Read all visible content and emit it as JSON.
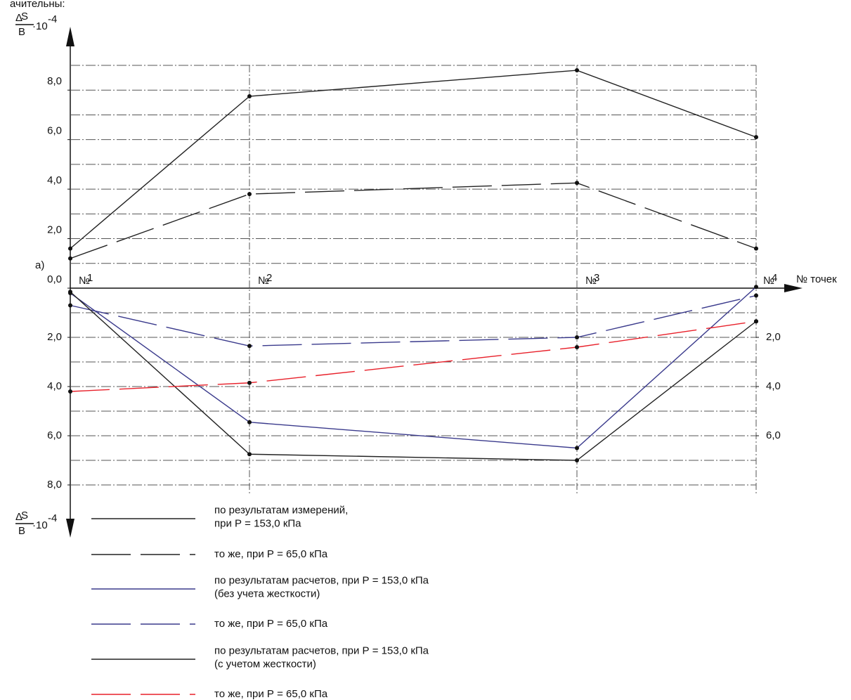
{
  "chart_data": {
    "type": "line",
    "caption_fragment": "ачительны:",
    "panel_label": "а)",
    "y_label": {
      "delta": "Δ",
      "numerator": "S",
      "denominator": "B",
      "factor": "·10",
      "exponent": "-4"
    },
    "x_label": "№ точек",
    "category_prefix": "№",
    "categories": [
      "1",
      "2",
      "3",
      "4"
    ],
    "ylim": [
      0,
      9
    ],
    "yticks": [
      {
        "value": 0,
        "label": "0,0"
      },
      {
        "value": 2,
        "label": "2,0"
      },
      {
        "value": 4,
        "label": "4,0"
      },
      {
        "value": 6,
        "label": "6,0"
      },
      {
        "value": 8,
        "label": "8,0"
      }
    ],
    "ygrid": [
      1,
      2,
      3,
      4,
      5,
      6,
      7,
      8,
      9
    ],
    "ylim_down": [
      0,
      8
    ],
    "yticks_down": [
      {
        "value": 2,
        "label": "2,0"
      },
      {
        "value": 4,
        "label": "4,0"
      },
      {
        "value": 6,
        "label": "6,0"
      },
      {
        "value": 8,
        "label": "8,0"
      }
    ],
    "y2ticks_down": [
      {
        "value": 2,
        "label": "2,0"
      },
      {
        "value": 4,
        "label": "4,0"
      },
      {
        "value": 6,
        "label": "6,0"
      }
    ],
    "ygrid_down": [
      1,
      2,
      3,
      4,
      5,
      6,
      7,
      8
    ],
    "series": [
      {
        "name": "по результатам измерений,\nпри Р = 153,0 кПа",
        "color": "#222222",
        "dash": "solid",
        "panel": "up",
        "values": [
          1.6,
          7.75,
          8.8,
          6.1
        ]
      },
      {
        "name": "то же, при Р = 65,0 кПа",
        "color": "#222222",
        "dash": "dashed",
        "panel": "up",
        "values": [
          1.2,
          3.8,
          4.25,
          1.6
        ]
      },
      {
        "name": "по результатам расчетов, при Р = 153,0 кПа\n(без учета жесткости)",
        "color": "#3a3a8c",
        "dash": "solid",
        "panel": "down",
        "values": [
          0.2,
          5.45,
          6.5,
          -0.05
        ]
      },
      {
        "name": "то же, при Р = 65,0 кПа",
        "color": "#3a3a8c",
        "dash": "dashed",
        "panel": "down",
        "values": [
          0.7,
          2.35,
          2.0,
          0.3
        ]
      },
      {
        "name": "по результатам расчетов, при Р = 153,0 кПа\n(с учетом жесткости)",
        "color": "#222222",
        "dash": "solid",
        "panel": "down",
        "values": [
          0.15,
          6.75,
          7.0,
          1.35
        ]
      },
      {
        "name": "то же, при Р = 65,0 кПа",
        "color": "#e8202a",
        "dash": "dashed",
        "panel": "down",
        "values": [
          4.2,
          3.85,
          2.4,
          1.35
        ]
      }
    ]
  }
}
